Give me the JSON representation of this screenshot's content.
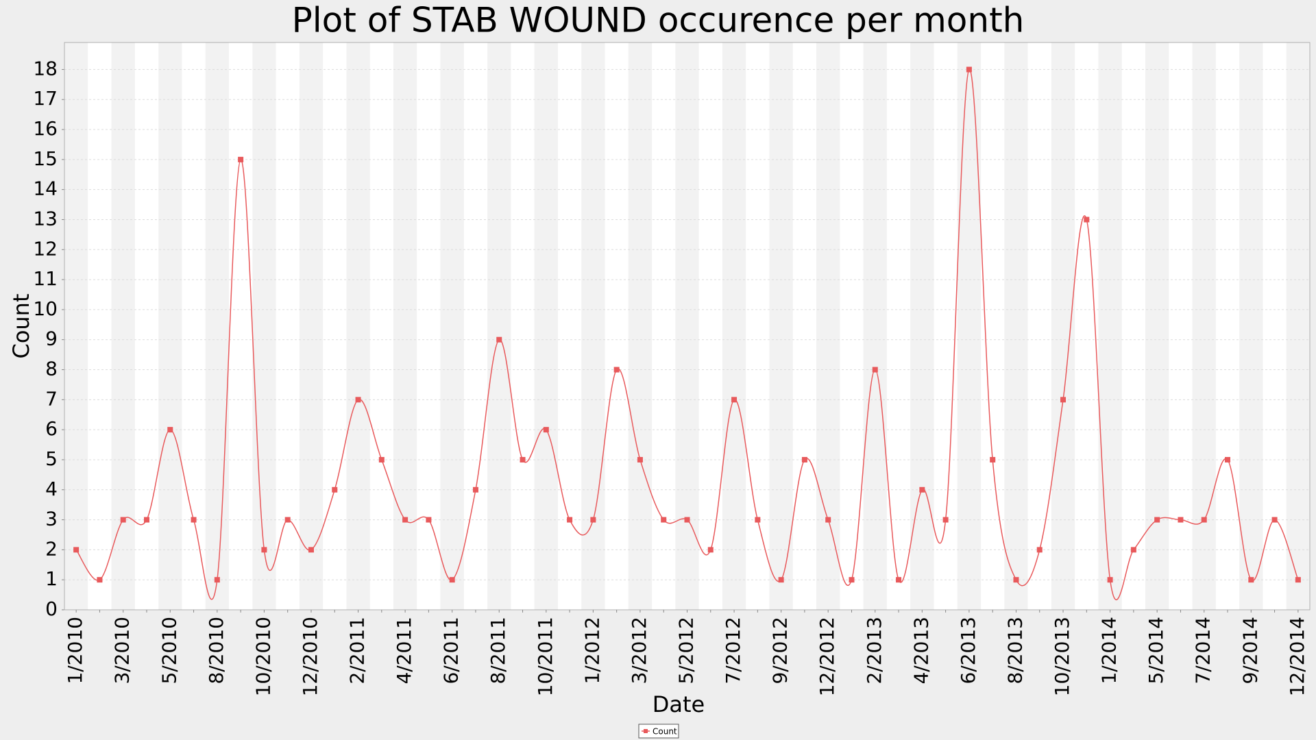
{
  "chart_data": {
    "type": "line",
    "title": "Plot of STAB WOUND occurence per month",
    "x_label": "Date",
    "y_label": "Count",
    "categories": [
      "1/2010",
      null,
      "3/2010",
      null,
      "5/2010",
      null,
      "8/2010",
      null,
      "10/2010",
      null,
      "12/2010",
      null,
      "2/2011",
      null,
      "4/2011",
      null,
      "6/2011",
      null,
      "8/2011",
      null,
      "10/2011",
      null,
      "1/2012",
      null,
      "3/2012",
      null,
      "5/2012",
      null,
      "7/2012",
      null,
      "9/2012",
      null,
      "12/2012",
      null,
      "2/2013",
      null,
      "4/2013",
      null,
      "6/2013",
      null,
      "8/2013",
      null,
      "10/2013",
      null,
      "1/2014",
      null,
      "5/2014",
      null,
      "7/2014",
      null,
      "9/2014",
      null,
      "12/2014"
    ],
    "series": [
      {
        "name": "Count",
        "color": "#e8595b",
        "values": [
          2,
          1,
          3,
          3,
          6,
          3,
          1,
          15,
          2,
          3,
          2,
          4,
          7,
          5,
          3,
          3,
          1,
          4,
          9,
          5,
          6,
          3,
          3,
          8,
          5,
          3,
          3,
          2,
          7,
          3,
          1,
          5,
          3,
          1,
          8,
          1,
          4,
          3,
          18,
          5,
          1,
          2,
          7,
          13,
          1,
          2,
          3,
          3,
          3,
          5,
          1,
          3,
          1
        ]
      }
    ],
    "ylim": [
      0,
      18.9
    ],
    "yticks": [
      0,
      1,
      2,
      3,
      4,
      5,
      6,
      7,
      8,
      9,
      10,
      11,
      12,
      13,
      14,
      15,
      16,
      17,
      18
    ],
    "grid": true,
    "smooth": true,
    "legend": "bottom"
  }
}
